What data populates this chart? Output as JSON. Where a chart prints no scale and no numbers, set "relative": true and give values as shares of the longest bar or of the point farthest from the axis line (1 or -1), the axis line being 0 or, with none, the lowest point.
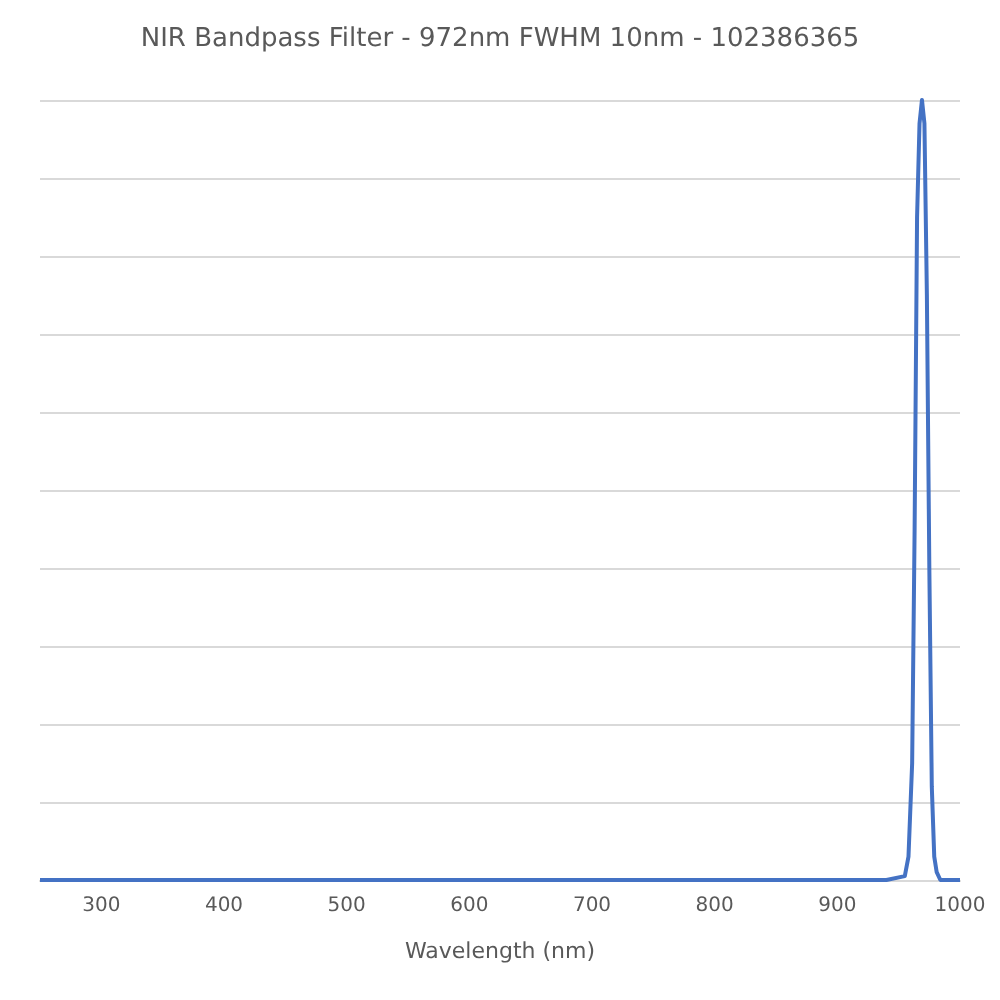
{
  "chart_data": {
    "type": "line",
    "title": "NIR Bandpass Filter - 972nm FWHM 10nm - 102386365",
    "xlabel": "Wavelength (nm)",
    "x": [
      250,
      400,
      600,
      800,
      940,
      955,
      958,
      961,
      963,
      965,
      967,
      969,
      971,
      973,
      975,
      977,
      979,
      981,
      984,
      990,
      1000
    ],
    "series": [
      {
        "color": "#4472c4",
        "values": [
          0,
          0,
          0,
          0,
          0,
          0.005,
          0.03,
          0.15,
          0.45,
          0.85,
          0.97,
          1,
          0.97,
          0.75,
          0.4,
          0.12,
          0.03,
          0.01,
          0,
          0,
          0
        ]
      }
    ],
    "relative": true,
    "xlim": [
      250,
      1000
    ],
    "xticks": [
      300,
      400,
      500,
      600,
      700,
      800,
      900,
      1000
    ],
    "grid": "y",
    "marker": "none",
    "line_style": "solid"
  }
}
